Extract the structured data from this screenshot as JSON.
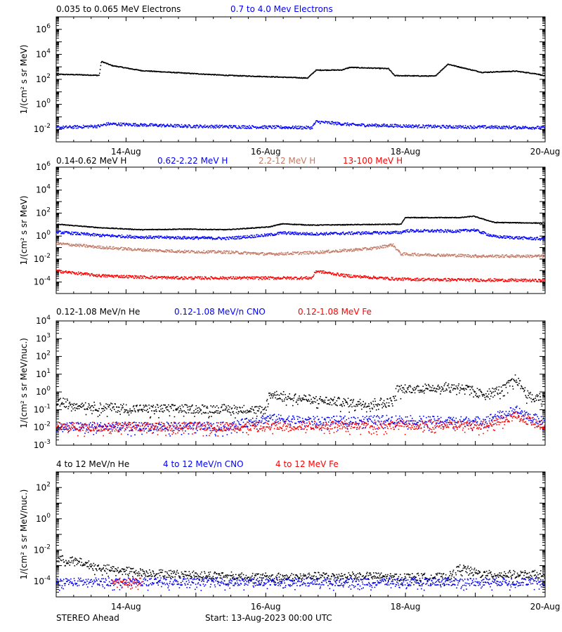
{
  "footer": {
    "spacecraft": "STEREO Ahead",
    "start": "Start: 13-Aug-2023 00:00 UTC"
  },
  "chart_data": [
    {
      "type": "scatter",
      "ylabel": "1/(cm² s sr MeV)",
      "yscale": "log",
      "ylim": [
        0.001,
        10000000
      ],
      "yticks": [
        {
          "exp": "-2",
          "value": 0.01
        },
        {
          "exp": "0",
          "value": 1
        },
        {
          "exp": "2",
          "value": 100
        },
        {
          "exp": "4",
          "value": 10000
        },
        {
          "exp": "6",
          "value": 1000000
        }
      ],
      "series": [
        {
          "name": "0.035 to 0.065 MeV Electrons",
          "color": "#000000",
          "points": [
            [
              0,
              280
            ],
            [
              0.5,
              260
            ],
            [
              1,
              230
            ],
            [
              1.05,
              3000
            ],
            [
              1.3,
              1400
            ],
            [
              2,
              550
            ],
            [
              3,
              350
            ],
            [
              4,
              230
            ],
            [
              5,
              180
            ],
            [
              5.9,
              140
            ],
            [
              6.1,
              600
            ],
            [
              6.7,
              620
            ],
            [
              6.9,
              1000
            ],
            [
              7.8,
              800
            ],
            [
              7.95,
              220
            ],
            [
              8.9,
              200
            ],
            [
              9.2,
              1800
            ],
            [
              9.7,
              700
            ],
            [
              10,
              400
            ],
            [
              10.8,
              500
            ],
            [
              11.3,
              300
            ],
            [
              11.5,
              200
            ]
          ]
        },
        {
          "name": "0.7 to 4.0 Mev Electrons",
          "color": "#0000ff",
          "points": [
            [
              0,
              0.015
            ],
            [
              1,
              0.02
            ],
            [
              1.2,
              0.03
            ],
            [
              3,
              0.02
            ],
            [
              6,
              0.015
            ],
            [
              6.1,
              0.045
            ],
            [
              7,
              0.025
            ],
            [
              9,
              0.018
            ],
            [
              11.5,
              0.015
            ]
          ]
        }
      ],
      "xticks": [
        "14-Aug",
        "16-Aug",
        "18-Aug",
        "20-Aug"
      ]
    },
    {
      "type": "scatter",
      "ylabel": "1/(cm² s sr MeV)",
      "yscale": "log",
      "ylim": [
        1e-05,
        1000000
      ],
      "yticks": [
        {
          "exp": "-4",
          "value": 0.0001
        },
        {
          "exp": "-2",
          "value": 0.01
        },
        {
          "exp": "0",
          "value": 1
        },
        {
          "exp": "2",
          "value": 100
        },
        {
          "exp": "4",
          "value": 10000
        },
        {
          "exp": "6",
          "value": 1000000
        }
      ],
      "series": [
        {
          "name": "0.14-0.62 MeV H",
          "color": "#000000",
          "points": [
            [
              0,
              12
            ],
            [
              1,
              6
            ],
            [
              2,
              4
            ],
            [
              3,
              4.5
            ],
            [
              4,
              4
            ],
            [
              5,
              7
            ],
            [
              5.3,
              13
            ],
            [
              6,
              10
            ],
            [
              7,
              11
            ],
            [
              8.1,
              12
            ],
            [
              8.2,
              45
            ],
            [
              9.5,
              45
            ],
            [
              9.8,
              60
            ],
            [
              10.3,
              17
            ],
            [
              11.5,
              15
            ]
          ]
        },
        {
          "name": "0.62-2.22 MeV H",
          "color": "#0000ff",
          "points": [
            [
              0,
              2.5
            ],
            [
              1,
              1.3
            ],
            [
              2,
              0.9
            ],
            [
              3,
              0.8
            ],
            [
              4,
              0.7
            ],
            [
              5,
              1.4
            ],
            [
              5.3,
              2.1
            ],
            [
              6,
              1.7
            ],
            [
              7,
              2
            ],
            [
              8.1,
              2.3
            ],
            [
              8.2,
              3.2
            ],
            [
              9.5,
              3
            ],
            [
              9.8,
              4
            ],
            [
              10.3,
              1
            ],
            [
              11.5,
              0.6
            ]
          ]
        },
        {
          "name": "2.2-12 MeV H",
          "color": "#c47a66",
          "points": [
            [
              0,
              0.25
            ],
            [
              1,
              0.12
            ],
            [
              2,
              0.07
            ],
            [
              3,
              0.05
            ],
            [
              4,
              0.045
            ],
            [
              5,
              0.03
            ],
            [
              6,
              0.04
            ],
            [
              7,
              0.07
            ],
            [
              7.5,
              0.1
            ],
            [
              7.9,
              0.2
            ],
            [
              8.1,
              0.03
            ],
            [
              9,
              0.025
            ],
            [
              10,
              0.02
            ],
            [
              11.5,
              0.02
            ]
          ]
        },
        {
          "name": "13-100 MeV H",
          "color": "#ff0000",
          "points": [
            [
              0,
              0.001
            ],
            [
              1,
              0.0004
            ],
            [
              2,
              0.0003
            ],
            [
              3,
              0.00025
            ],
            [
              6,
              0.00025
            ],
            [
              6.1,
              0.001
            ],
            [
              6.8,
              0.0004
            ],
            [
              8,
              0.0002
            ],
            [
              9,
              0.00018
            ],
            [
              11.5,
              0.00015
            ]
          ]
        }
      ]
    },
    {
      "type": "scatter",
      "ylabel": "1/(cm² s sr MeV/nuc.)",
      "yscale": "log",
      "ylim": [
        0.001,
        10000
      ],
      "yticks": [
        {
          "exp": "-3",
          "value": 0.001
        },
        {
          "exp": "-2",
          "value": 0.01
        },
        {
          "exp": "-1",
          "value": 0.1
        },
        {
          "exp": "0",
          "value": 1
        },
        {
          "exp": "1",
          "value": 10
        },
        {
          "exp": "2",
          "value": 100
        },
        {
          "exp": "3",
          "value": 1000
        },
        {
          "exp": "4",
          "value": 10000
        }
      ],
      "series": [
        {
          "name": "0.12-1.08 MeV/n He",
          "color": "#000000",
          "points": [
            [
              0,
              0.3
            ],
            [
              1,
              0.15
            ],
            [
              2,
              0.12
            ],
            [
              4,
              0.12
            ],
            [
              4.9,
              0.1
            ],
            [
              5,
              0.8
            ],
            [
              6,
              0.4
            ],
            [
              7,
              0.25
            ],
            [
              7.9,
              0.3
            ],
            [
              8,
              1.5
            ],
            [
              9,
              2
            ],
            [
              9.5,
              2.2
            ],
            [
              10,
              0.8
            ],
            [
              10.5,
              1.5
            ],
            [
              10.8,
              6
            ],
            [
              11.1,
              0.6
            ],
            [
              11.5,
              0.5
            ]
          ]
        },
        {
          "name": "0.12-1.08 MeV/n CNO",
          "color": "#0000ff",
          "points": [
            [
              0,
              0.012
            ],
            [
              2,
              0.012
            ],
            [
              4,
              0.012
            ],
            [
              5,
              0.035
            ],
            [
              6,
              0.025
            ],
            [
              8,
              0.03
            ],
            [
              9,
              0.025
            ],
            [
              10,
              0.025
            ],
            [
              10.8,
              0.1
            ],
            [
              11.5,
              0.02
            ]
          ]
        },
        {
          "name": "0.12-1.08 MeV Fe",
          "color": "#ff0000",
          "points": [
            [
              0,
              0.012
            ],
            [
              3,
              0.012
            ],
            [
              5,
              0.012
            ],
            [
              6,
              0.014
            ],
            [
              8,
              0.015
            ],
            [
              10,
              0.014
            ],
            [
              10.8,
              0.05
            ],
            [
              11.5,
              0.012
            ]
          ]
        }
      ]
    },
    {
      "type": "scatter",
      "ylabel": "1/(cm² s sr MeV/nuc.)",
      "yscale": "log",
      "ylim": [
        1e-05,
        1000
      ],
      "yticks": [
        {
          "exp": "-4",
          "value": 0.0001
        },
        {
          "exp": "-2",
          "value": 0.01
        },
        {
          "exp": "0",
          "value": 1
        },
        {
          "exp": "2",
          "value": 100
        }
      ],
      "series": [
        {
          "name": "4 to 12 MeV/n He",
          "color": "#000000",
          "points": [
            [
              0,
              0.003
            ],
            [
              0.5,
              0.002
            ],
            [
              1,
              0.0008
            ],
            [
              2,
              0.0004
            ],
            [
              3,
              0.0003
            ],
            [
              4,
              0.00025
            ],
            [
              5,
              0.0002
            ],
            [
              7,
              0.00025
            ],
            [
              8,
              0.0002
            ],
            [
              9.2,
              0.0002
            ],
            [
              9.5,
              0.0008
            ],
            [
              10,
              0.0003
            ],
            [
              11.5,
              0.0003
            ]
          ]
        },
        {
          "name": "4 to 12 MeV/n CNO",
          "color": "#0000ff",
          "points": [
            [
              0,
              0.0001
            ],
            [
              2,
              0.0001
            ],
            [
              5,
              0.0001
            ],
            [
              8,
              0.0001
            ],
            [
              11.5,
              0.0001
            ]
          ]
        },
        {
          "name": "4 to 12 MeV Fe",
          "color": "#ff0000",
          "points": [
            [
              1.3,
              0.0001
            ],
            [
              2,
              0.0001
            ]
          ]
        }
      ],
      "xticks": [
        "14-Aug",
        "16-Aug",
        "18-Aug",
        "20-Aug"
      ]
    }
  ]
}
